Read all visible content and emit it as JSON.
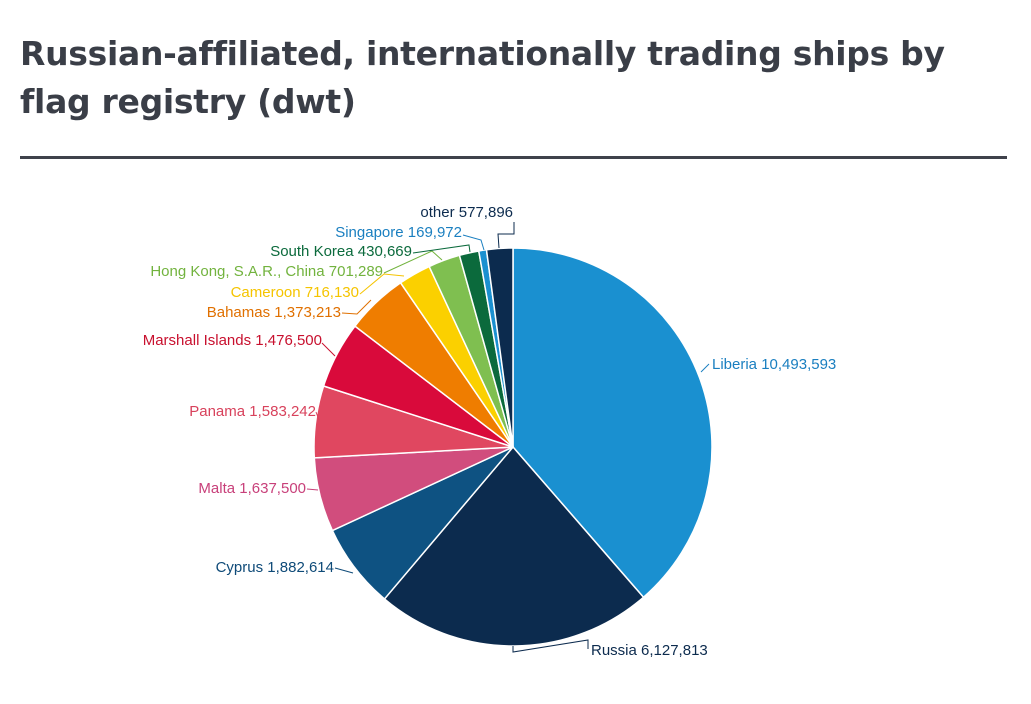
{
  "title": "Russian-affiliated, internationally trading ships by flag registry (dwt)",
  "chart_data": {
    "type": "pie",
    "title": "Russian-affiliated, internationally trading ships by flag registry (dwt)",
    "slices": [
      {
        "name": "Liberia",
        "value": 10493593,
        "label": "Liberia 10,493,593",
        "color": "#1a90d0"
      },
      {
        "name": "Russia",
        "value": 6127813,
        "label": "Russia 6,127,813",
        "color": "#0c2b4e"
      },
      {
        "name": "Cyprus",
        "value": 1882614,
        "label": "Cyprus 1,882,614",
        "color": "#0e5282"
      },
      {
        "name": "Malta",
        "value": 1637500,
        "label": "Malta 1,637,500",
        "color": "#d14d7d"
      },
      {
        "name": "Panama",
        "value": 1583242,
        "label": "Panama 1,583,242",
        "color": "#e04760"
      },
      {
        "name": "Marshall Islands",
        "value": 1476500,
        "label": "Marshall Islands 1,476,500",
        "color": "#d90a3b"
      },
      {
        "name": "Bahamas",
        "value": 1373213,
        "label": "Bahamas 1,373,213",
        "color": "#ef7d00"
      },
      {
        "name": "Cameroon",
        "value": 716130,
        "label": "Cameroon 716,130",
        "color": "#fbd000"
      },
      {
        "name": "Hong Kong, S.A.R., China",
        "value": 701289,
        "label": "Hong Kong, S.A.R., China 701,289",
        "color": "#7fbf50"
      },
      {
        "name": "South Korea",
        "value": 430669,
        "label": "South Korea 430,669",
        "color": "#0b6a3c"
      },
      {
        "name": "Singapore",
        "value": 169972,
        "label": "Singapore 169,972",
        "color": "#1a90d0"
      },
      {
        "name": "other",
        "value": 577896,
        "label": "other 577,896",
        "color": "#0c2b4e"
      }
    ],
    "label_colors": {
      "Liberia": "#1a7fc0",
      "Russia": "#0c2b4e",
      "Cyprus": "#0e4a78",
      "Malta": "#c8407a",
      "Panama": "#d8425c",
      "Marshall Islands": "#c8102e",
      "Bahamas": "#e07000",
      "Cameroon": "#f5c400",
      "Hong Kong, S.A.R., China": "#72b33e",
      "South Korea": "#0b6a3c",
      "Singapore": "#1a7fc0",
      "other": "#0c2b4e"
    },
    "start": "12 o'clock",
    "direction": "clockwise"
  }
}
